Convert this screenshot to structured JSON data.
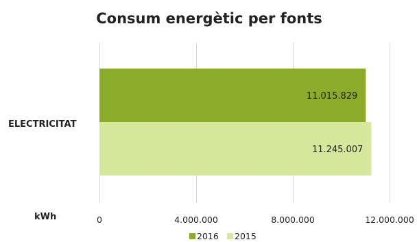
{
  "chart_data": {
    "type": "bar",
    "orientation": "horizontal",
    "title": "Consum energètic per fonts",
    "categories": [
      "ELECTRICITAT"
    ],
    "series": [
      {
        "name": "2016",
        "values": [
          11015829
        ],
        "color": "#8aac2a",
        "data_labels": [
          "11.015.829"
        ]
      },
      {
        "name": "2015",
        "values": [
          11245007
        ],
        "color": "#d5e89c",
        "data_labels": [
          "11.245.007"
        ]
      }
    ],
    "xlim": [
      0,
      12000000
    ],
    "x_ticks": [
      0,
      4000000,
      8000000,
      12000000
    ],
    "x_tick_labels": [
      "0",
      "4.000.000",
      "8.000.000",
      "12.000.000"
    ],
    "unit_label": "kWh",
    "grid": true,
    "legend_position": "bottom"
  }
}
